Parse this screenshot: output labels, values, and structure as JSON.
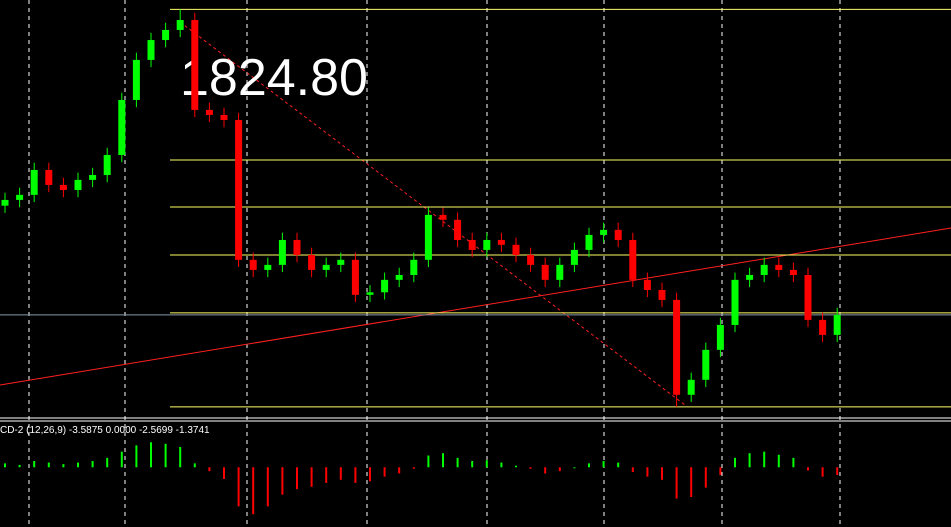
{
  "chart_data": {
    "type": "candlestick",
    "annotation": "1824.80",
    "ylim": [
      1600,
      1830
    ],
    "up_color": "#00ff00",
    "down_color": "#ff0000",
    "level_color": "#ffff66",
    "levels": [
      1824.8,
      1741.3,
      1715.3,
      1688.7,
      1656.6,
      1604.5
    ],
    "open": [
      1716.0,
      1719.2,
      1722.0,
      1735.8,
      1727.5,
      1724.7,
      1730.3,
      1733.0,
      1744.1,
      1774.6,
      1796.8,
      1807.8,
      1813.4,
      1818.9,
      1769.1,
      1766.3,
      1763.5,
      1686.0,
      1680.4,
      1683.2,
      1697.0,
      1688.7,
      1680.4,
      1683.2,
      1686.0,
      1666.6,
      1668.0,
      1674.9,
      1677.6,
      1686.0,
      1710.9,
      1708.2,
      1697.0,
      1691.5,
      1697.0,
      1694.3,
      1688.7,
      1683.2,
      1674.9,
      1683.2,
      1691.5,
      1699.8,
      1702.6,
      1697.0,
      1674.9,
      1669.3,
      1663.8,
      1611.2,
      1619.5,
      1636.1,
      1649.9,
      1674.9,
      1677.6,
      1683.2,
      1680.4,
      1677.6,
      1652.7,
      1644.4
    ],
    "high": [
      1723.2,
      1726.0,
      1739.8,
      1739.8,
      1731.5,
      1734.3,
      1737.0,
      1748.1,
      1778.6,
      1800.8,
      1811.8,
      1817.4,
      1824.8,
      1822.9,
      1773.1,
      1770.3,
      1767.5,
      1690.0,
      1687.2,
      1701.0,
      1701.0,
      1692.7,
      1687.2,
      1690.0,
      1690.0,
      1672.0,
      1678.9,
      1681.6,
      1690.0,
      1714.9,
      1714.9,
      1712.2,
      1701.0,
      1701.0,
      1701.0,
      1698.3,
      1692.7,
      1687.2,
      1687.2,
      1695.5,
      1703.8,
      1706.6,
      1706.6,
      1701.0,
      1678.9,
      1673.3,
      1667.8,
      1623.5,
      1640.1,
      1653.9,
      1678.9,
      1681.6,
      1687.2,
      1687.2,
      1684.4,
      1681.6,
      1656.7,
      1659.5
    ],
    "low": [
      1712.0,
      1715.2,
      1718.0,
      1723.5,
      1720.7,
      1720.7,
      1726.3,
      1729.0,
      1740.1,
      1770.6,
      1792.8,
      1803.8,
      1809.4,
      1765.1,
      1762.3,
      1759.5,
      1682.0,
      1676.4,
      1676.4,
      1679.2,
      1684.7,
      1676.4,
      1676.4,
      1679.2,
      1662.6,
      1662.6,
      1664.0,
      1670.9,
      1673.6,
      1682.0,
      1704.2,
      1693.0,
      1687.5,
      1687.5,
      1690.3,
      1684.7,
      1679.2,
      1670.9,
      1670.9,
      1679.2,
      1687.5,
      1695.8,
      1693.0,
      1670.9,
      1665.3,
      1659.8,
      1604.5,
      1607.2,
      1615.5,
      1632.1,
      1645.9,
      1670.9,
      1673.6,
      1676.4,
      1673.6,
      1648.7,
      1640.4,
      1640.4
    ],
    "close": [
      1719.2,
      1722.0,
      1735.8,
      1727.5,
      1724.7,
      1730.3,
      1733.0,
      1744.1,
      1774.6,
      1796.8,
      1807.8,
      1813.4,
      1818.9,
      1769.1,
      1766.3,
      1763.5,
      1686.0,
      1680.4,
      1683.2,
      1697.0,
      1688.7,
      1680.4,
      1683.2,
      1686.0,
      1666.6,
      1668.0,
      1674.9,
      1677.6,
      1686.0,
      1710.9,
      1708.2,
      1697.0,
      1691.5,
      1697.0,
      1694.3,
      1688.7,
      1683.2,
      1674.9,
      1683.2,
      1691.5,
      1699.8,
      1702.6,
      1697.0,
      1674.9,
      1669.3,
      1663.8,
      1611.2,
      1619.5,
      1636.1,
      1649.9,
      1674.9,
      1677.6,
      1683.2,
      1680.4,
      1677.6,
      1652.7,
      1644.4,
      1655.5
    ],
    "macd": {
      "label": "CD-2 (12,26,9) -3.5875 0.0000 -2.5699 -1.3741",
      "ylim": [
        -7,
        4
      ],
      "values": [
        0.5,
        0.3,
        0.8,
        0.6,
        0.4,
        0.6,
        0.8,
        1.2,
        2.0,
        2.8,
        3.2,
        3.0,
        2.6,
        0.5,
        -0.5,
        -1.5,
        -5.0,
        -6.0,
        -5.0,
        -3.5,
        -2.8,
        -2.5,
        -2.0,
        -1.6,
        -2.0,
        -1.8,
        -1.2,
        -0.8,
        -0.2,
        1.5,
        1.8,
        1.2,
        0.8,
        0.9,
        0.6,
        0.2,
        -0.2,
        -0.8,
        -0.5,
        0.0,
        0.5,
        0.8,
        0.6,
        -0.6,
        -1.2,
        -1.6,
        -4.0,
        -3.8,
        -2.6,
        -1.0,
        1.2,
        1.8,
        2.0,
        1.6,
        1.2,
        -0.4,
        -1.2,
        -1.0
      ]
    }
  }
}
